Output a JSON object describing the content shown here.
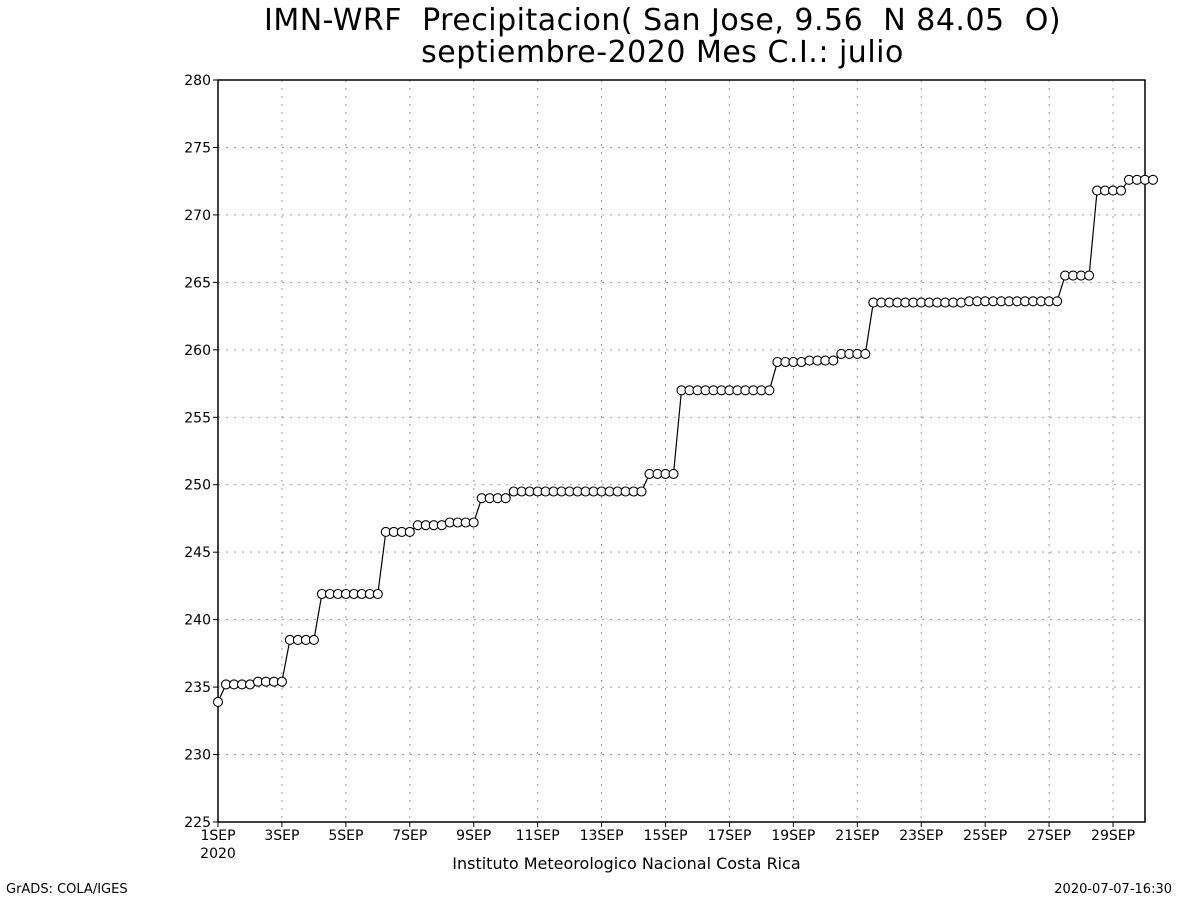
{
  "header": {
    "title_line1": "IMN-WRF  Precipitacion( San Jose, 9.56  N 84.05  O)",
    "title_line2": "septiembre-2020 Mes C.I.: julio"
  },
  "footer": {
    "left": "GrADS: COLA/IGES",
    "right": "2020-07-07-16:30"
  },
  "chart_data": {
    "type": "line",
    "title": "IMN-WRF  Precipitacion( San Jose, 9.56  N 84.05  O) septiembre-2020 Mes C.I.: julio",
    "xlabel": "Instituto Meteorologico Nacional Costa Rica",
    "x_sublabel": "2020",
    "ylabel": "",
    "ylim": [
      225,
      280
    ],
    "yticks": [
      225,
      230,
      235,
      240,
      245,
      250,
      255,
      260,
      265,
      270,
      275,
      280
    ],
    "xlim_days": [
      1,
      30
    ],
    "xticks": [
      {
        "day": 1,
        "label": "1SEP"
      },
      {
        "day": 3,
        "label": "3SEP"
      },
      {
        "day": 5,
        "label": "5SEP"
      },
      {
        "day": 7,
        "label": "7SEP"
      },
      {
        "day": 9,
        "label": "9SEP"
      },
      {
        "day": 11,
        "label": "11SEP"
      },
      {
        "day": 13,
        "label": "13SEP"
      },
      {
        "day": 15,
        "label": "15SEP"
      },
      {
        "day": 17,
        "label": "17SEP"
      },
      {
        "day": 19,
        "label": "19SEP"
      },
      {
        "day": 21,
        "label": "21SEP"
      },
      {
        "day": 23,
        "label": "23SEP"
      },
      {
        "day": 25,
        "label": "25SEP"
      },
      {
        "day": 27,
        "label": "27SEP"
      },
      {
        "day": 29,
        "label": "29SEP"
      }
    ],
    "grid": true,
    "marker": "open-circle",
    "step_hours": 6,
    "series": [
      {
        "values": [
          233.9,
          235.2,
          235.2,
          235.2,
          235.2,
          235.4,
          235.4,
          235.4,
          235.4,
          238.5,
          238.5,
          238.5,
          238.5,
          241.9,
          241.9,
          241.9,
          241.9,
          241.9,
          241.9,
          241.9,
          241.9,
          246.5,
          246.5,
          246.5,
          246.5,
          247.0,
          247.0,
          247.0,
          247.0,
          247.2,
          247.2,
          247.2,
          247.2,
          249.0,
          249.0,
          249.0,
          249.0,
          249.5,
          249.5,
          249.5,
          249.5,
          249.5,
          249.5,
          249.5,
          249.5,
          249.5,
          249.5,
          249.5,
          249.5,
          249.5,
          249.5,
          249.5,
          249.5,
          249.5,
          250.8,
          250.8,
          250.8,
          250.8,
          257.0,
          257.0,
          257.0,
          257.0,
          257.0,
          257.0,
          257.0,
          257.0,
          257.0,
          257.0,
          257.0,
          257.0,
          259.1,
          259.1,
          259.1,
          259.1,
          259.2,
          259.2,
          259.2,
          259.2,
          259.7,
          259.7,
          259.7,
          259.7,
          263.5,
          263.5,
          263.5,
          263.5,
          263.5,
          263.5,
          263.5,
          263.5,
          263.5,
          263.5,
          263.5,
          263.5,
          263.6,
          263.6,
          263.6,
          263.6,
          263.6,
          263.6,
          263.6,
          263.6,
          263.6,
          263.6,
          263.6,
          263.6,
          265.5,
          265.5,
          265.5,
          265.5,
          271.8,
          271.8,
          271.8,
          271.8,
          272.6,
          272.6,
          272.6,
          272.6
        ]
      }
    ]
  }
}
